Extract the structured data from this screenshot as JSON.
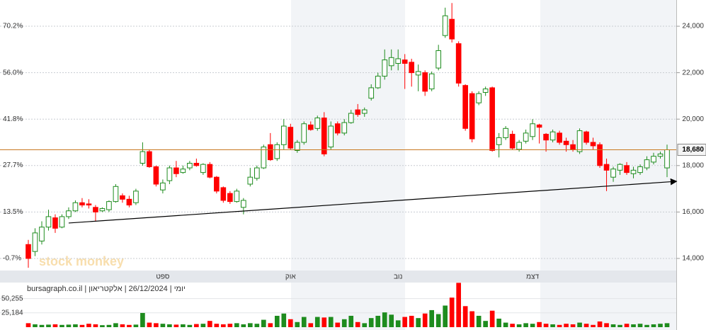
{
  "chart_data": {
    "type": "candlestick",
    "header": "יומי | 26/12/2024 | אלקטריאון | bursagraph.co.il",
    "watermark": "stock monkey",
    "categories": [
      null,
      null,
      null,
      null,
      null,
      null,
      null,
      null,
      null,
      null,
      null,
      null,
      null,
      null,
      null,
      null,
      null,
      null,
      null,
      null,
      "ספט",
      null,
      null,
      null,
      null,
      null,
      null,
      null,
      null,
      null,
      null,
      null,
      null,
      null,
      null,
      null,
      null,
      null,
      null,
      "אוק",
      null,
      null,
      null,
      null,
      null,
      null,
      null,
      null,
      null,
      null,
      null,
      null,
      null,
      null,
      null,
      "נוב",
      null,
      null,
      null,
      null,
      null,
      null,
      null,
      null,
      null,
      null,
      null,
      null,
      null,
      null,
      null,
      null,
      null,
      null,
      null,
      "דצמ",
      null,
      null,
      null,
      null,
      null,
      null,
      null,
      null,
      null,
      null,
      null,
      null,
      null,
      null,
      null,
      null,
      null,
      null,
      null,
      null
    ],
    "open": [
      14600,
      14300,
      14750,
      15350,
      15750,
      15350,
      15800,
      16050,
      16400,
      16350,
      16200,
      16050,
      16100,
      16450,
      16700,
      16550,
      16400,
      18100,
      18600,
      17950,
      16950,
      17350,
      17900,
      17700,
      17900,
      18100,
      17700,
      18050,
      17500,
      17050,
      16800,
      16450,
      16200,
      17200,
      17450,
      17900,
      18900,
      18300,
      18900,
      19650,
      18650,
      19000,
      19750,
      19600,
      20050,
      18800,
      19800,
      19400,
      19850,
      20400,
      20250,
      20900,
      21350,
      21850,
      22300,
      22400,
      22550,
      22450,
      21900,
      22000,
      21300,
      22200,
      23600,
      24300,
      23250,
      21450,
      21100,
      20700,
      21150,
      21350,
      18900,
      19200,
      19350,
      18700,
      19050,
      19250,
      19750,
      19350,
      19100,
      19400,
      19050,
      18900,
      18600,
      19450,
      19000,
      18900,
      18050,
      17500,
      17800,
      18000,
      17650,
      17700,
      17900,
      18150,
      18400,
      17900
    ],
    "close": [
      14000,
      15100,
      15350,
      15800,
      15300,
      15800,
      16050,
      16400,
      16300,
      16300,
      16000,
      16150,
      16450,
      17100,
      16550,
      16300,
      16900,
      18600,
      17950,
      17200,
      17250,
      17900,
      17650,
      17850,
      18100,
      18000,
      18050,
      17500,
      16900,
      16500,
      16450,
      16900,
      16500,
      17500,
      17900,
      18800,
      18250,
      18900,
      19700,
      18750,
      19000,
      19800,
      19550,
      20050,
      18500,
      19700,
      19400,
      19850,
      20250,
      20200,
      20400,
      21350,
      21850,
      22550,
      22650,
      22600,
      22400,
      22000,
      22050,
      21200,
      21950,
      22950,
      24450,
      23450,
      21550,
      19600,
      19150,
      21100,
      21300,
      18650,
      19200,
      19600,
      18750,
      19000,
      19400,
      19800,
      19650,
      19100,
      19450,
      19000,
      18900,
      18700,
      19500,
      19000,
      18850,
      18000,
      17800,
      17850,
      18050,
      17700,
      17800,
      17950,
      18250,
      18400,
      18500,
      18680
    ],
    "high": [
      14800,
      15300,
      15600,
      16100,
      15900,
      15900,
      16200,
      16500,
      16600,
      16550,
      16300,
      16200,
      16500,
      17200,
      16800,
      16700,
      17000,
      19000,
      18700,
      18000,
      17400,
      18000,
      18200,
      18000,
      18200,
      18300,
      18100,
      18150,
      17550,
      17100,
      16900,
      17000,
      16600,
      17900,
      18000,
      18900,
      19400,
      19000,
      20000,
      19800,
      19100,
      19900,
      19900,
      20150,
      20300,
      19900,
      19900,
      20000,
      20400,
      20650,
      20500,
      21500,
      22000,
      23000,
      23000,
      23000,
      22800,
      22600,
      22350,
      22100,
      22050,
      23200,
      24800,
      25000,
      23350,
      21500,
      21200,
      21200,
      21400,
      21400,
      19400,
      19700,
      19500,
      19100,
      19550,
      20000,
      19800,
      19400,
      19550,
      19500,
      19200,
      19100,
      19600,
      19500,
      19200,
      19000,
      18300,
      17950,
      18100,
      18150,
      17950,
      18050,
      18400,
      18550,
      18600,
      18900
    ],
    "low": [
      13600,
      14100,
      14600,
      15200,
      15100,
      15300,
      15700,
      16000,
      16200,
      16150,
      15600,
      16000,
      16000,
      16400,
      16400,
      16200,
      16300,
      18000,
      17900,
      17100,
      16800,
      17200,
      17500,
      17650,
      17800,
      17950,
      17600,
      17450,
      16800,
      16400,
      16350,
      16400,
      15900,
      17100,
      17350,
      17850,
      18200,
      18200,
      18700,
      18700,
      18550,
      18900,
      19500,
      19500,
      18400,
      18700,
      19300,
      19300,
      19800,
      20100,
      20100,
      20800,
      21300,
      21700,
      22100,
      22100,
      21300,
      21400,
      21200,
      21000,
      21200,
      22100,
      23500,
      23300,
      21400,
      19500,
      19000,
      20600,
      21000,
      18600,
      18350,
      19100,
      18700,
      18600,
      18950,
      19100,
      18950,
      18600,
      19000,
      18900,
      18600,
      18600,
      18500,
      18900,
      18700,
      17900,
      16900,
      17300,
      17600,
      17600,
      17450,
      17600,
      17800,
      18050,
      18300,
      17500
    ],
    "volume": [
      7000,
      5000,
      4000,
      4500,
      5000,
      4000,
      4500,
      5000,
      4000,
      6000,
      5000,
      3500,
      4000,
      7000,
      5000,
      4000,
      4500,
      25000,
      8000,
      7000,
      6000,
      5000,
      4500,
      5000,
      4000,
      5500,
      6000,
      11000,
      6000,
      5000,
      6000,
      7000,
      5000,
      7000,
      6000,
      13000,
      7000,
      20000,
      24000,
      14000,
      9000,
      18000,
      7000,
      18000,
      17000,
      18000,
      8000,
      14000,
      20000,
      9000,
      7000,
      16000,
      20000,
      26000,
      22000,
      12000,
      18000,
      20000,
      16000,
      24000,
      30000,
      23000,
      38000,
      52000,
      78000,
      37000,
      28000,
      20000,
      11000,
      29000,
      15000,
      8000,
      6000,
      5000,
      7000,
      6000,
      9000,
      6000,
      5000,
      4000,
      6000,
      5000,
      8000,
      6000,
      4000,
      10000,
      7000,
      5000,
      4000,
      6000,
      5000,
      6000,
      4000,
      5000,
      6000,
      7000
    ],
    "up_color": "#1e8c1e",
    "down_color": "#ff0000",
    "ylim": [
      13480,
      25130
    ],
    "yticks": [
      {
        "value": 14000,
        "label": "14,000"
      },
      {
        "value": 16000,
        "label": "16,000"
      },
      {
        "value": 18000,
        "label": "18,000"
      },
      {
        "value": 20000,
        "label": "20,000"
      },
      {
        "value": 22000,
        "label": "22,000"
      },
      {
        "value": 24000,
        "label": "24,000"
      }
    ],
    "y2lim": [
      -4.4,
      78.2
    ],
    "y2ticks": [
      {
        "value": -0.7,
        "label": "-0.7%"
      },
      {
        "value": 13.5,
        "label": "13.5%"
      },
      {
        "value": 27.7,
        "label": "27.7%"
      },
      {
        "value": 41.8,
        "label": "41.8%"
      },
      {
        "value": 56.0,
        "label": "56.0%"
      },
      {
        "value": 70.2,
        "label": "70.2%"
      }
    ],
    "volume_lim": [
      0,
      78500
    ],
    "volume_ticks": [
      {
        "value": 25184,
        "label": "25,184"
      },
      {
        "value": 50255,
        "label": "50,255"
      }
    ],
    "grid": true,
    "price_line": {
      "value": 18680,
      "label": "18,680",
      "color": "#c87820"
    },
    "trendline": {
      "x": [
        6,
        96.4
      ],
      "y": [
        15525,
        17320
      ],
      "color": "#000000"
    }
  }
}
